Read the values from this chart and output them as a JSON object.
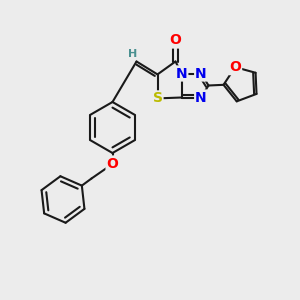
{
  "bg_color": "#ececec",
  "bond_color": "#1a1a1a",
  "bond_width": 1.5,
  "atom_colors": {
    "O": "#ff0000",
    "N": "#0000ee",
    "S": "#bbbb00",
    "C": "#1a1a1a",
    "H": "#4a9090"
  },
  "font_size": 9
}
